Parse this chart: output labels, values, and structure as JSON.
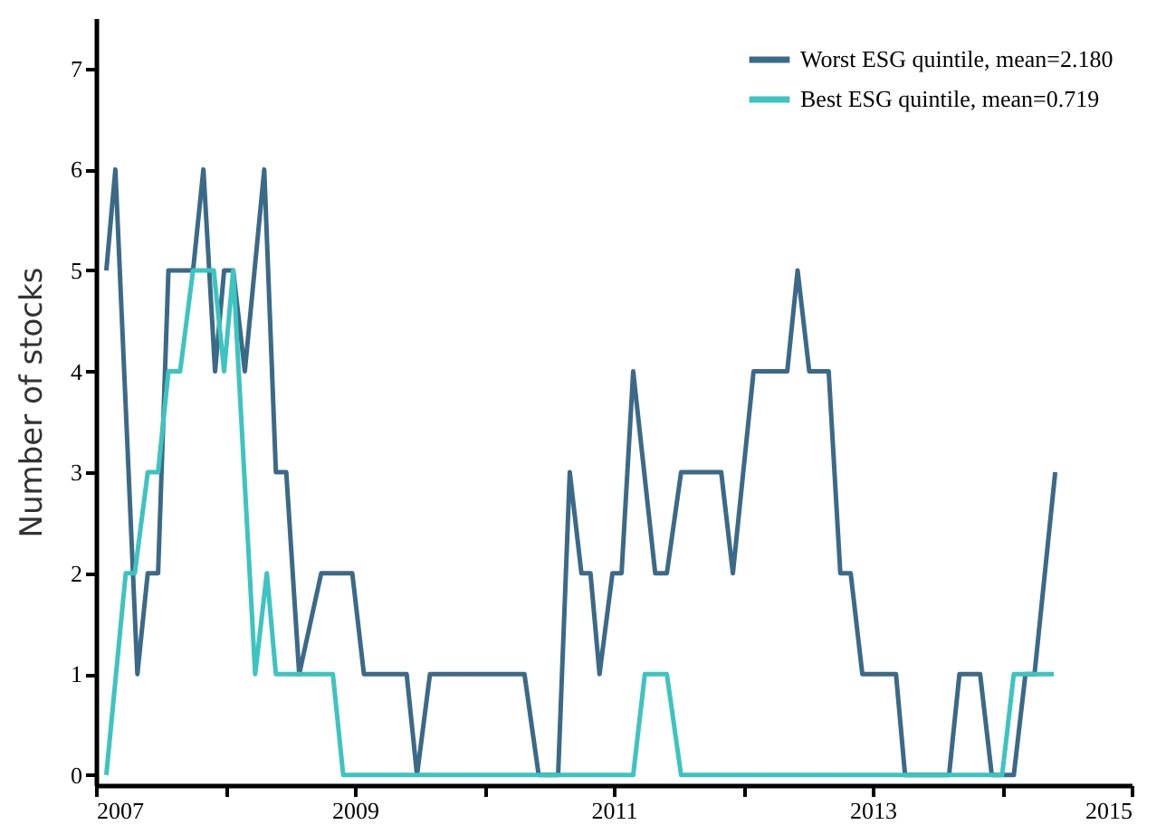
{
  "chart_data": {
    "type": "line",
    "ylabel": "Number of stocks",
    "xlim": [
      2007,
      2015
    ],
    "ylim": [
      -0.1,
      7.5
    ],
    "xticks": [
      2007,
      {
        "value": 2008,
        "label": null
      },
      2009,
      {
        "value": 2010,
        "label": null
      },
      2011,
      {
        "value": 2012,
        "label": null
      },
      2013,
      {
        "value": 2014,
        "label": null
      },
      2015
    ],
    "yticks": [
      0,
      1,
      2,
      3,
      4,
      5,
      6,
      7
    ],
    "grid": false,
    "legend": "top right",
    "marker": "none",
    "line_style": "solid",
    "series": [
      {
        "name": "Worst ESG quintile, mean=2.180",
        "color": "#3b6a88",
        "x": [
          2007.08,
          2007.15,
          2007.32,
          2007.4,
          2007.48,
          2007.56,
          2007.75,
          2007.83,
          2007.92,
          2007.99,
          2008.06,
          2008.15,
          2008.3,
          2008.39,
          2008.47,
          2008.57,
          2008.74,
          2008.98,
          2009.07,
          2009.4,
          2009.48,
          2009.58,
          2010.31,
          2010.42,
          2010.57,
          2010.66,
          2010.75,
          2010.82,
          2010.89,
          2010.99,
          2011.06,
          2011.15,
          2011.32,
          2011.41,
          2011.52,
          2011.83,
          2011.92,
          2012.08,
          2012.34,
          2012.42,
          2012.51,
          2012.66,
          2012.75,
          2012.83,
          2012.92,
          2013.18,
          2013.25,
          2013.59,
          2013.67,
          2013.83,
          2013.92,
          2014.09,
          2014.18,
          2014.25,
          2014.41
        ],
        "values": [
          5,
          6,
          1,
          2,
          2,
          5,
          5,
          6,
          4,
          5,
          5,
          4,
          6,
          3,
          3,
          1,
          2,
          2,
          1,
          1,
          0,
          1,
          1,
          0,
          0,
          3,
          2,
          2,
          1,
          2,
          2,
          4,
          2,
          2,
          3,
          3,
          2,
          4,
          4,
          5,
          4,
          4,
          2,
          2,
          1,
          1,
          0,
          0,
          1,
          1,
          0,
          0,
          1,
          1,
          3
        ]
      },
      {
        "name": "Best ESG quintile, mean=0.719",
        "color": "#3cc4c0",
        "x": [
          2007.08,
          2007.23,
          2007.3,
          2007.4,
          2007.48,
          2007.56,
          2007.65,
          2007.75,
          2007.91,
          2007.99,
          2008.06,
          2008.23,
          2008.32,
          2008.39,
          2008.83,
          2008.91,
          2011.15,
          2011.24,
          2011.41,
          2011.52,
          2014.0,
          2014.09,
          2014.4
        ],
        "values": [
          0,
          2,
          2,
          3,
          3,
          4,
          4,
          5,
          5,
          4,
          5,
          1,
          2,
          1,
          1,
          0,
          0,
          1,
          1,
          0,
          0,
          1,
          1
        ]
      }
    ]
  }
}
